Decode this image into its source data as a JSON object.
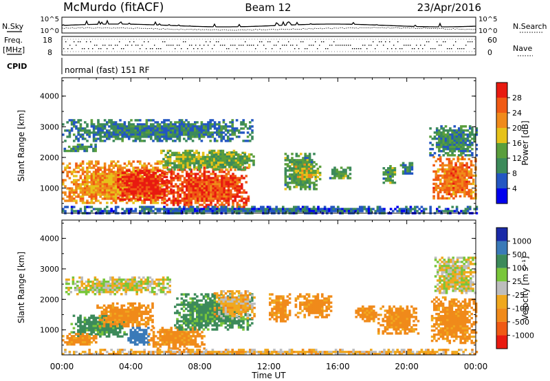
{
  "header": {
    "station": "McMurdo (fitACF)",
    "beam": "Beam 12",
    "date": "23/Apr/2016"
  },
  "top_panel": {
    "left_label": "N.Sky",
    "right_label": "N.Search",
    "left_ticks": [
      "10^5",
      "10^0"
    ],
    "right_ticks": [
      "10^5",
      "10^0"
    ]
  },
  "freq_panel": {
    "left_label_line1": "Freq.",
    "left_label_line2": "[MHz]",
    "right_label": "Nave",
    "left_ticks": [
      "18",
      "8"
    ],
    "right_ticks": [
      "60",
      "0"
    ]
  },
  "cpid": {
    "label": "CPID",
    "text": "normal (fast) 151 RF"
  },
  "colors": {
    "power": [
      "#0000ee",
      "#2356c2",
      "#3c8a5a",
      "#5a9e3c",
      "#e6c21a",
      "#f08a1a",
      "#f05a14",
      "#e81a10"
    ],
    "velocity": [
      "#e81a10",
      "#f05a14",
      "#f08a1a",
      "#f0a81e",
      "#bdbdbd",
      "#79c63a",
      "#3c8a5a",
      "#3a7ab8",
      "#1a2aa8"
    ]
  },
  "chart_data": [
    {
      "type": "heatmap",
      "title": "Power",
      "ylabel": "Slant Range [km]",
      "xlabel": "",
      "x_ticks": [
        "00:00",
        "04:00",
        "08:00",
        "12:00",
        "16:00",
        "20:00",
        "00:00"
      ],
      "y_ticks": [
        1000,
        2000,
        3000,
        4000
      ],
      "xlim_hours": [
        0,
        24
      ],
      "ylim_km": [
        180,
        4600
      ],
      "colorbar": {
        "label": "Power [dB]",
        "ticks": [
          "4",
          "8",
          "12",
          "16",
          "20",
          "24",
          "28"
        ],
        "range": [
          0,
          32
        ]
      },
      "regions": [
        {
          "t0": 0.0,
          "t1": 5.9,
          "r0": 500,
          "r1": 1900,
          "value": 22
        },
        {
          "t0": 3.2,
          "t1": 6.3,
          "r0": 650,
          "r1": 1600,
          "value": 30
        },
        {
          "t0": 5.9,
          "t1": 10.8,
          "r0": 350,
          "r1": 1700,
          "value": 27
        },
        {
          "t0": 5.7,
          "t1": 10.6,
          "r0": 1600,
          "r1": 2250,
          "value": 15
        },
        {
          "t0": 8.5,
          "t1": 11.1,
          "r0": 1700,
          "r1": 2200,
          "value": 13
        },
        {
          "t0": 0.1,
          "t1": 1.9,
          "r0": 2200,
          "r1": 2450,
          "value": 11
        },
        {
          "t0": 0.0,
          "t1": 11.0,
          "r0": 2550,
          "r1": 3250,
          "value": 9
        },
        {
          "t0": 12.9,
          "t1": 14.7,
          "r0": 1000,
          "r1": 2150,
          "value": 12
        },
        {
          "t0": 13.5,
          "t1": 15.0,
          "r0": 1300,
          "r1": 1800,
          "value": 18
        },
        {
          "t0": 15.5,
          "t1": 16.7,
          "r0": 1300,
          "r1": 1700,
          "value": 12
        },
        {
          "t0": 18.6,
          "t1": 19.3,
          "r0": 1150,
          "r1": 1750,
          "value": 12
        },
        {
          "t0": 19.6,
          "t1": 20.3,
          "r0": 1450,
          "r1": 1850,
          "value": 9
        },
        {
          "t0": 21.5,
          "t1": 24.0,
          "r0": 650,
          "r1": 2050,
          "value": 24
        },
        {
          "t0": 21.3,
          "t1": 24.0,
          "r0": 2050,
          "r1": 3050,
          "value": 10
        },
        {
          "t0": 0.0,
          "t1": 24.0,
          "r0": 200,
          "r1": 420,
          "value": 7
        }
      ]
    },
    {
      "type": "heatmap",
      "title": "Velocity",
      "ylabel": "Slant Range [km]",
      "xlabel": "Time UT",
      "x_ticks": [
        "00:00",
        "04:00",
        "08:00",
        "12:00",
        "16:00",
        "20:00",
        "00:00"
      ],
      "y_ticks": [
        1000,
        2000,
        3000,
        4000
      ],
      "xlim_hours": [
        0,
        24
      ],
      "ylim_km": [
        180,
        4600
      ],
      "colorbar": {
        "label": "Velocity [m s⁻¹]",
        "ticks": [
          "-1000",
          "-500",
          "-100",
          "-25",
          "25",
          "100",
          "500",
          "1000"
        ],
        "range": [
          -1500,
          1500
        ]
      },
      "regions": [
        {
          "t0": 0.5,
          "t1": 3.8,
          "r0": 800,
          "r1": 1500,
          "value": 150
        },
        {
          "t0": 0.0,
          "t1": 2.0,
          "r0": 500,
          "r1": 900,
          "value": -150
        },
        {
          "t0": 2.0,
          "t1": 5.2,
          "r0": 1100,
          "r1": 1900,
          "value": -150
        },
        {
          "t0": 3.8,
          "t1": 5.0,
          "r0": 500,
          "r1": 1100,
          "value": 600
        },
        {
          "t0": 5.0,
          "t1": 8.2,
          "r0": 400,
          "r1": 1100,
          "value": -150
        },
        {
          "t0": 6.5,
          "t1": 11.0,
          "r0": 1000,
          "r1": 2200,
          "value": 150
        },
        {
          "t0": 8.8,
          "t1": 11.2,
          "r0": 1400,
          "r1": 2300,
          "value": -60
        },
        {
          "t0": 0.2,
          "t1": 6.2,
          "r0": 2200,
          "r1": 2750,
          "value": 0
        },
        {
          "t0": 12.0,
          "t1": 13.2,
          "r0": 1300,
          "r1": 2200,
          "value": -150
        },
        {
          "t0": 13.5,
          "t1": 15.6,
          "r0": 1400,
          "r1": 2200,
          "value": -150
        },
        {
          "t0": 17.0,
          "t1": 18.2,
          "r0": 1300,
          "r1": 1800,
          "value": -150
        },
        {
          "t0": 18.3,
          "t1": 20.6,
          "r0": 900,
          "r1": 1800,
          "value": -150
        },
        {
          "t0": 21.4,
          "t1": 24.0,
          "r0": 600,
          "r1": 2100,
          "value": -150
        },
        {
          "t0": 21.6,
          "t1": 24.0,
          "r0": 2200,
          "r1": 3400,
          "value": 0
        },
        {
          "t0": 0.0,
          "t1": 24.0,
          "r0": 200,
          "r1": 380,
          "value": -60
        }
      ]
    }
  ]
}
